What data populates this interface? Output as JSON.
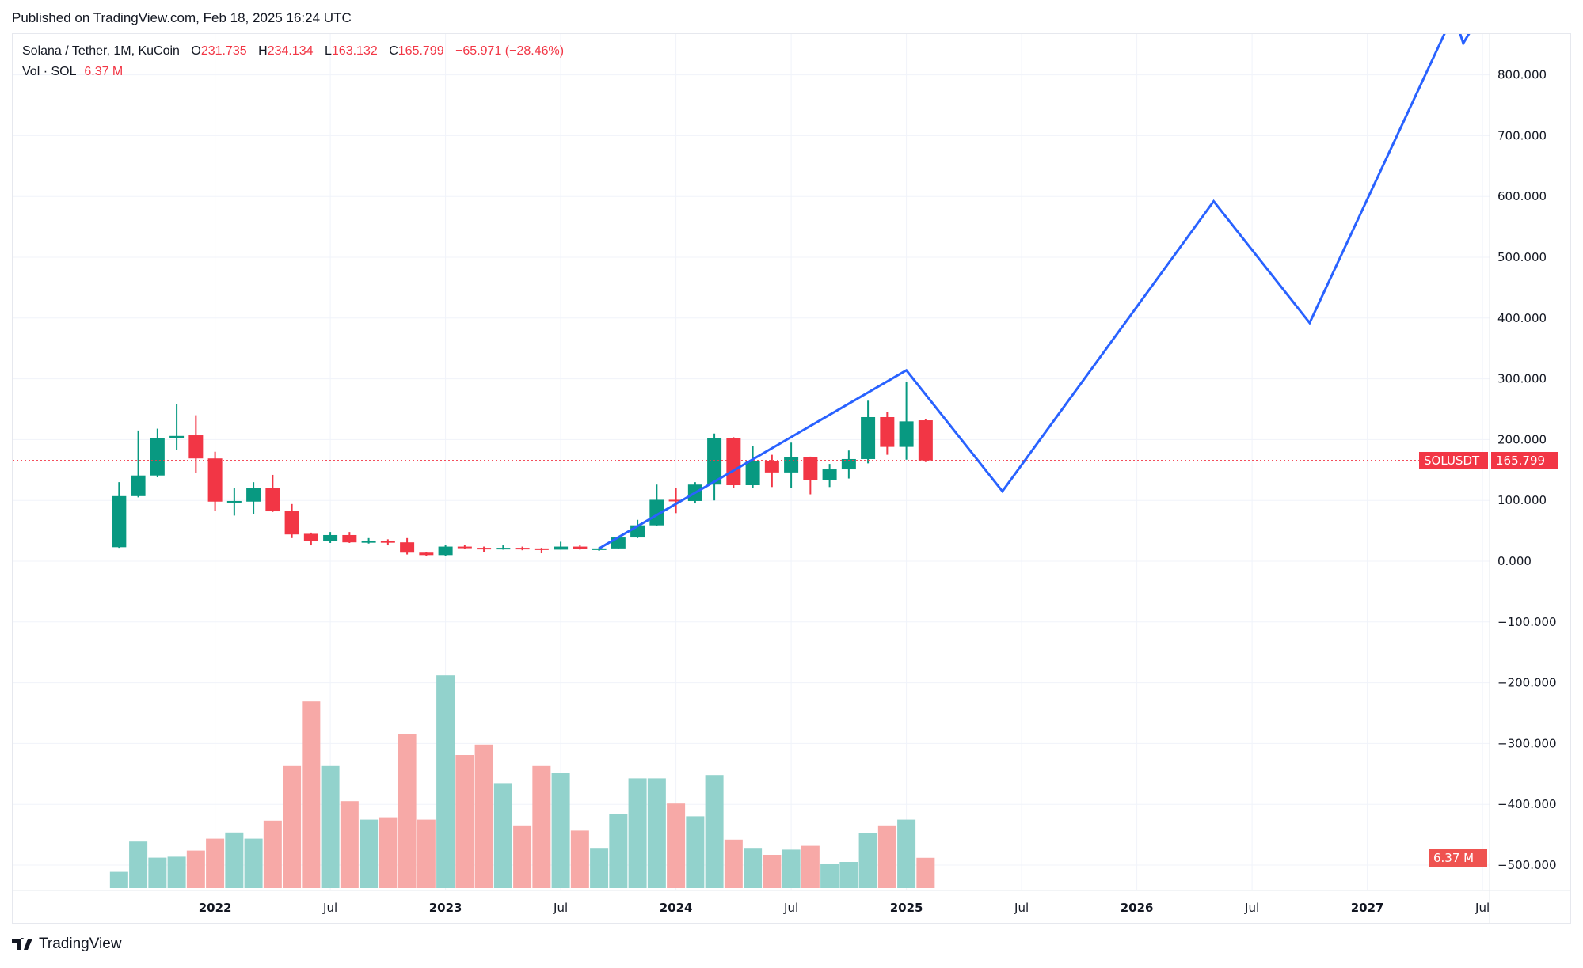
{
  "header": {
    "published": "Published on TradingView.com, Feb 18, 2025 16:24 UTC"
  },
  "legend": {
    "symbol": "Solana / Tether, 1M, KuCoin",
    "o_label": "O",
    "o": "231.735",
    "h_label": "H",
    "h": "234.134",
    "l_label": "L",
    "l": "163.132",
    "c_label": "C",
    "c": "165.799",
    "change": "−65.971 (−28.46%)",
    "vol_label": "Vol · SOL",
    "vol": "6.37 M"
  },
  "price_tag": {
    "symbol": "SOLUSDT",
    "price": "165.799",
    "vol": "6.37 M"
  },
  "footer": {
    "logo_text": "TradingView"
  },
  "colors": {
    "up": "#089981",
    "down": "#f23645",
    "vol_up": "#92d2cc",
    "vol_down": "#f7a9a7",
    "projection": "#2962ff",
    "grid": "#f0f3fa"
  },
  "chart_data": {
    "type": "candlestick",
    "interval": "1M",
    "ylim": [
      -500,
      800
    ],
    "yticks": [
      "800.000",
      "700.000",
      "600.000",
      "500.000",
      "400.000",
      "300.000",
      "200.000",
      "100.000",
      "0.000",
      "−100.000",
      "−200.000",
      "−300.000",
      "−400.000",
      "−500.000"
    ],
    "ytick_values": [
      800,
      700,
      600,
      500,
      400,
      300,
      200,
      100,
      0,
      -100,
      -200,
      -300,
      -400,
      -500
    ],
    "xticks": [
      {
        "label": "2022",
        "date": "2022-01"
      },
      {
        "label": "Jul",
        "date": "2022-07"
      },
      {
        "label": "2023",
        "date": "2023-01"
      },
      {
        "label": "Jul",
        "date": "2023-07"
      },
      {
        "label": "2024",
        "date": "2024-01"
      },
      {
        "label": "Jul",
        "date": "2024-07"
      },
      {
        "label": "2025",
        "date": "2025-01"
      },
      {
        "label": "Jul",
        "date": "2025-07"
      },
      {
        "label": "2026",
        "date": "2026-01"
      },
      {
        "label": "Jul",
        "date": "2026-07"
      },
      {
        "label": "2027",
        "date": "2027-01"
      },
      {
        "label": "Jul",
        "date": "2027-07"
      }
    ],
    "grid": true,
    "last_price": 165.799,
    "candles": [
      {
        "date": "2021-08",
        "o": 23,
        "h": 130,
        "l": 22,
        "c": 107,
        "vol": 3.4
      },
      {
        "date": "2021-09",
        "o": 107,
        "h": 215,
        "l": 105,
        "c": 141,
        "vol": 9.8
      },
      {
        "date": "2021-10",
        "o": 141,
        "h": 218,
        "l": 138,
        "c": 202,
        "vol": 6.4
      },
      {
        "date": "2021-11",
        "o": 202,
        "h": 259,
        "l": 183,
        "c": 206,
        "vol": 6.6
      },
      {
        "date": "2021-12",
        "o": 207,
        "h": 240,
        "l": 145,
        "c": 169,
        "vol": 7.9
      },
      {
        "date": "2022-01",
        "o": 169,
        "h": 180,
        "l": 82,
        "c": 98,
        "vol": 10.4
      },
      {
        "date": "2022-02",
        "o": 98,
        "h": 120,
        "l": 75,
        "c": 99,
        "vol": 11.7
      },
      {
        "date": "2022-03",
        "o": 98,
        "h": 130,
        "l": 78,
        "c": 121,
        "vol": 10.4
      },
      {
        "date": "2022-04",
        "o": 121,
        "h": 142,
        "l": 81,
        "c": 82,
        "vol": 14.2
      },
      {
        "date": "2022-05",
        "o": 83,
        "h": 94,
        "l": 38,
        "c": 44,
        "vol": 25.7
      },
      {
        "date": "2022-06",
        "o": 45,
        "h": 47,
        "l": 26,
        "c": 33,
        "vol": 39.3
      },
      {
        "date": "2022-07",
        "o": 33,
        "h": 48,
        "l": 30,
        "c": 43,
        "vol": 25.7
      },
      {
        "date": "2022-08",
        "o": 43,
        "h": 48,
        "l": 30,
        "c": 31,
        "vol": 18.3
      },
      {
        "date": "2022-09",
        "o": 31,
        "h": 38,
        "l": 29,
        "c": 33,
        "vol": 14.4
      },
      {
        "date": "2022-10",
        "o": 33,
        "h": 36,
        "l": 26,
        "c": 32,
        "vol": 14.9
      },
      {
        "date": "2022-11",
        "o": 31,
        "h": 38,
        "l": 11,
        "c": 14,
        "vol": 32.5
      },
      {
        "date": "2022-12",
        "o": 14,
        "h": 15,
        "l": 8,
        "c": 10,
        "vol": 14.4
      },
      {
        "date": "2023-01",
        "o": 10,
        "h": 26,
        "l": 9,
        "c": 24,
        "vol": 44.8
      },
      {
        "date": "2023-02",
        "o": 24,
        "h": 27,
        "l": 20,
        "c": 22,
        "vol": 28.0
      },
      {
        "date": "2023-03",
        "o": 22,
        "h": 24,
        "l": 15,
        "c": 21,
        "vol": 30.2
      },
      {
        "date": "2023-04",
        "o": 21,
        "h": 26,
        "l": 19,
        "c": 22,
        "vol": 22.1
      },
      {
        "date": "2023-05",
        "o": 22,
        "h": 24,
        "l": 18,
        "c": 21,
        "vol": 13.2
      },
      {
        "date": "2023-06",
        "o": 21,
        "h": 22,
        "l": 13,
        "c": 19,
        "vol": 25.7
      },
      {
        "date": "2023-07",
        "o": 19,
        "h": 32,
        "l": 19,
        "c": 24,
        "vol": 24.2
      },
      {
        "date": "2023-08",
        "o": 24,
        "h": 26,
        "l": 19,
        "c": 20,
        "vol": 12.1
      },
      {
        "date": "2023-09",
        "o": 20,
        "h": 23,
        "l": 17,
        "c": 21,
        "vol": 8.3
      },
      {
        "date": "2023-10",
        "o": 21,
        "h": 40,
        "l": 21,
        "c": 39,
        "vol": 15.5
      },
      {
        "date": "2023-11",
        "o": 39,
        "h": 68,
        "l": 38,
        "c": 59,
        "vol": 23.1
      },
      {
        "date": "2023-12",
        "o": 59,
        "h": 126,
        "l": 58,
        "c": 101,
        "vol": 23.1
      },
      {
        "date": "2024-01",
        "o": 101,
        "h": 120,
        "l": 79,
        "c": 99,
        "vol": 17.8
      },
      {
        "date": "2024-02",
        "o": 99,
        "h": 130,
        "l": 95,
        "c": 126,
        "vol": 15.1
      },
      {
        "date": "2024-03",
        "o": 126,
        "h": 210,
        "l": 100,
        "c": 202,
        "vol": 23.8
      },
      {
        "date": "2024-04",
        "o": 202,
        "h": 204,
        "l": 120,
        "c": 125,
        "vol": 10.2
      },
      {
        "date": "2024-05",
        "o": 125,
        "h": 190,
        "l": 120,
        "c": 165,
        "vol": 8.3
      },
      {
        "date": "2024-06",
        "o": 165,
        "h": 175,
        "l": 122,
        "c": 146,
        "vol": 7.0
      },
      {
        "date": "2024-07",
        "o": 146,
        "h": 195,
        "l": 121,
        "c": 171,
        "vol": 8.1
      },
      {
        "date": "2024-08",
        "o": 171,
        "h": 172,
        "l": 110,
        "c": 134,
        "vol": 8.9
      },
      {
        "date": "2024-09",
        "o": 134,
        "h": 160,
        "l": 122,
        "c": 151,
        "vol": 5.1
      },
      {
        "date": "2024-10",
        "o": 151,
        "h": 182,
        "l": 136,
        "c": 168,
        "vol": 5.5
      },
      {
        "date": "2024-11",
        "o": 168,
        "h": 264,
        "l": 161,
        "c": 237,
        "vol": 11.5
      },
      {
        "date": "2024-12",
        "o": 237,
        "h": 245,
        "l": 175,
        "c": 188,
        "vol": 13.2
      },
      {
        "date": "2025-01",
        "o": 188,
        "h": 295,
        "l": 167,
        "c": 230,
        "vol": 14.4
      },
      {
        "date": "2025-02",
        "o": 231.735,
        "h": 234.134,
        "l": 163.132,
        "c": 165.799,
        "vol": 6.37
      }
    ],
    "projection": [
      {
        "date": "2023-09",
        "value": 21
      },
      {
        "date": "2025-01",
        "value": 314
      },
      {
        "date": "2025-06",
        "value": 115
      },
      {
        "date": "2026-05",
        "value": 592
      },
      {
        "date": "2026-10",
        "value": 392
      },
      {
        "date": "2027-05.5",
        "value": 900
      },
      {
        "date": "2027-06",
        "value": 852
      },
      {
        "date": "2027-07",
        "value": 905
      }
    ]
  }
}
